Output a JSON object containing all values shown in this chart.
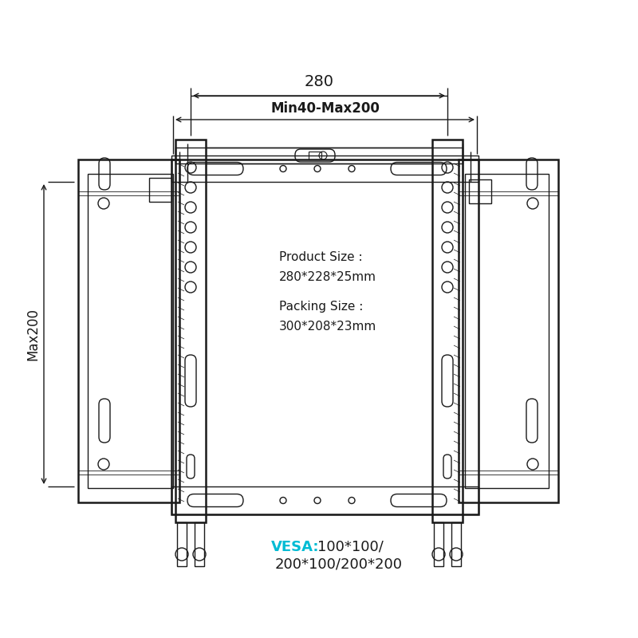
{
  "bg_color": "#ffffff",
  "line_color": "#1a1a1a",
  "vesa_color": "#00bcd4",
  "product_size_text": "Product Size :",
  "product_size_value": "280*228*25mm",
  "packing_size_text": "Packing Size :",
  "packing_size_value": "300*208*23mm",
  "vesa_label": "VESA:",
  "vesa_value_line1": "100*100/",
  "vesa_value_line2": "200*100/200*200",
  "dim_280_label": "280",
  "dim_min_max_label": "Min40-Max200",
  "dim_max200_label": "Max200",
  "figsize": [
    8.0,
    8.0
  ],
  "dpi": 100
}
